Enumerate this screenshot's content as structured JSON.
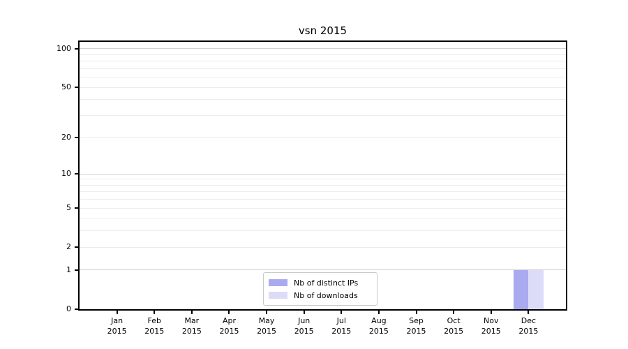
{
  "chart_data": {
    "type": "bar",
    "title": "vsn 2015",
    "categories": [
      "Jan 2015",
      "Feb 2015",
      "Mar 2015",
      "Apr 2015",
      "May 2015",
      "Jun 2015",
      "Jul 2015",
      "Aug 2015",
      "Sep 2015",
      "Oct 2015",
      "Nov 2015",
      "Dec 2015"
    ],
    "x_tick_lines": {
      "months": [
        "Jan",
        "Feb",
        "Mar",
        "Apr",
        "May",
        "Jun",
        "Jul",
        "Aug",
        "Sep",
        "Oct",
        "Nov",
        "Dec"
      ],
      "year": "2015"
    },
    "series": [
      {
        "name": "Nb of distinct IPs",
        "color": "#aaaaf0",
        "values": [
          0,
          0,
          0,
          0,
          0,
          0,
          0,
          0,
          0,
          0,
          0,
          1
        ]
      },
      {
        "name": "Nb of downloads",
        "color": "#dcdcf8",
        "values": [
          0,
          0,
          0,
          0,
          0,
          0,
          0,
          0,
          0,
          0,
          0,
          1
        ]
      }
    ],
    "yscale": "log10(value+1)",
    "ylim": [
      0,
      113
    ],
    "y_tick_values": [
      0,
      1,
      2,
      5,
      10,
      20,
      50,
      100
    ],
    "y_decade_gridlines": [
      1,
      10,
      100
    ],
    "y_sub_gridlines": [
      2,
      3,
      4,
      5,
      6,
      7,
      8,
      9,
      20,
      30,
      40,
      50,
      60,
      70,
      80,
      90
    ],
    "grid": true,
    "legend_position": "lower center",
    "bar_width_fraction": 0.4
  },
  "style": {
    "decade_grid_color": "#d2d2d2",
    "sub_grid_color": "#ececec",
    "spine_color": "#000000",
    "text_color": "#000000",
    "legend_border_color": "#c9c9c9",
    "background": "#ffffff"
  }
}
